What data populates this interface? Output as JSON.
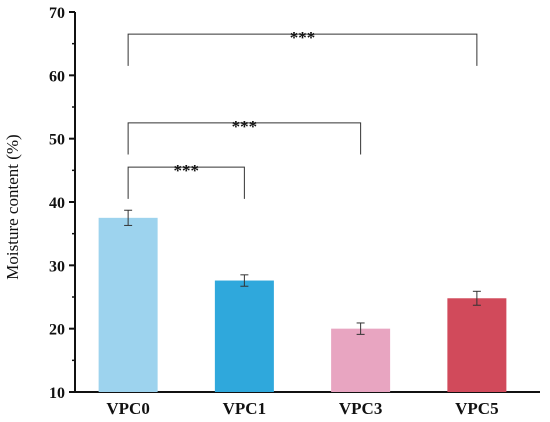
{
  "chart_data": {
    "type": "bar",
    "title": "",
    "xlabel": "",
    "ylabel": "Moisture content (%)",
    "ylim": [
      10,
      70
    ],
    "yticks": [
      10,
      20,
      30,
      40,
      50,
      60,
      70
    ],
    "categories": [
      "VPC0",
      "VPC1",
      "VPC3",
      "VPC5"
    ],
    "values": [
      37.5,
      27.6,
      20.0,
      24.8
    ],
    "errors": [
      1.2,
      0.9,
      0.9,
      1.1
    ],
    "colors": [
      "#9dd3ee",
      "#2fa8dc",
      "#e8a5c1",
      "#d14a5b"
    ],
    "grid": false,
    "legend": "none",
    "significance": [
      {
        "from": "VPC0",
        "to": "VPC1",
        "label": "***",
        "y": 45.5,
        "drop": 5.0
      },
      {
        "from": "VPC0",
        "to": "VPC3",
        "label": "***",
        "y": 52.5,
        "drop": 5.0
      },
      {
        "from": "VPC0",
        "to": "VPC5",
        "label": "***",
        "y": 66.5,
        "drop": 5.0
      }
    ]
  }
}
